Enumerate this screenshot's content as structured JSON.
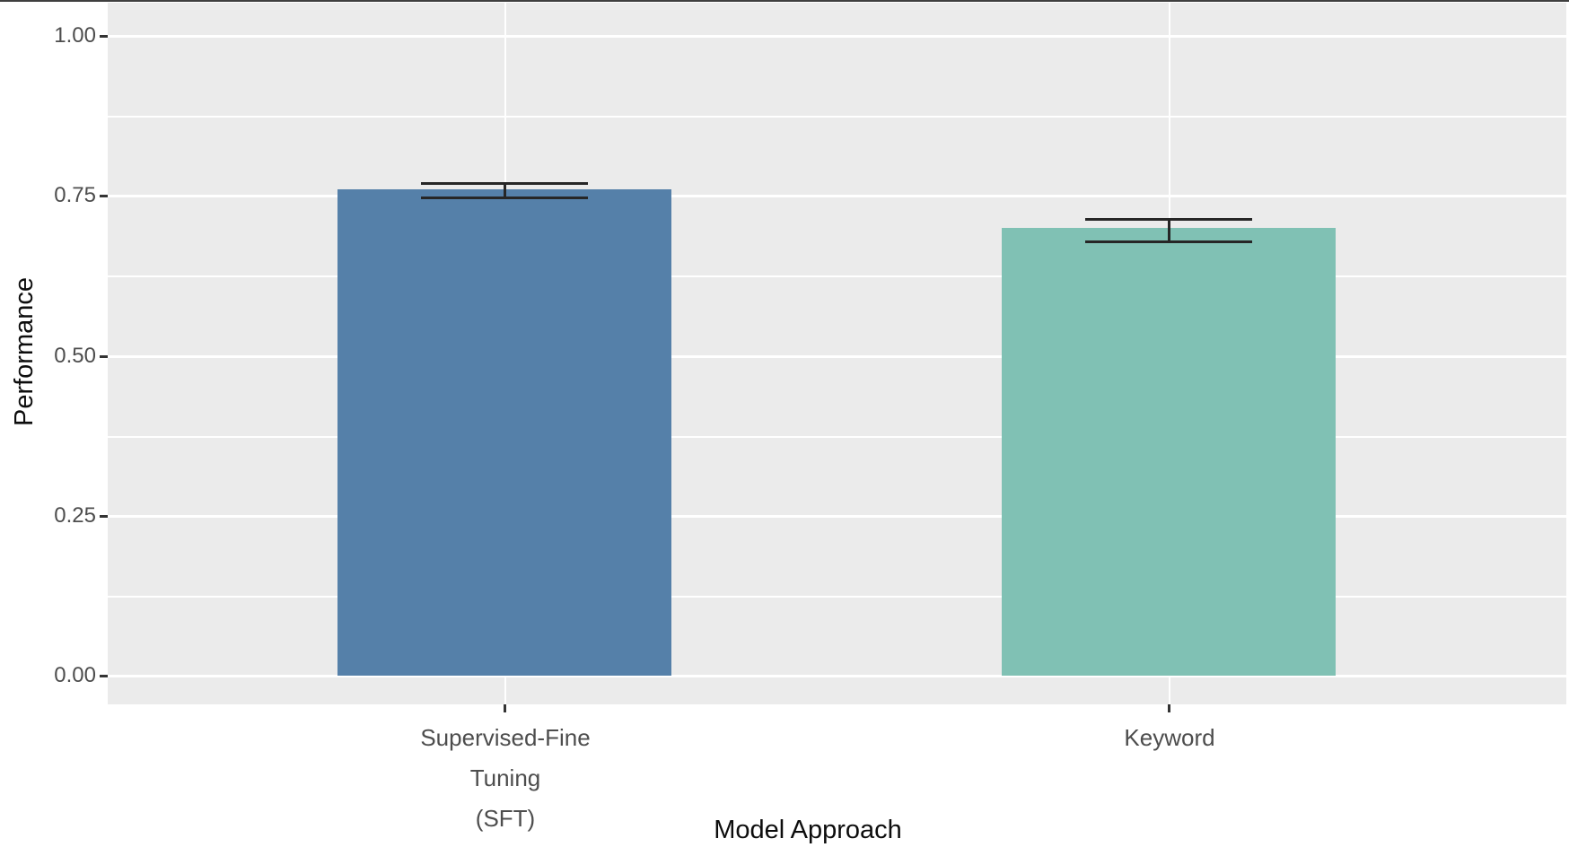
{
  "chart_data": {
    "type": "bar",
    "title": "",
    "xlabel": "Model Approach",
    "ylabel": "Performance",
    "categories": [
      "Supervised-Fine Tuning (SFT)",
      "Keyword"
    ],
    "values": [
      0.76,
      0.7
    ],
    "error_bars": [
      {
        "low": 0.749,
        "high": 0.772
      },
      {
        "low": 0.68,
        "high": 0.715
      }
    ],
    "bar_colors": [
      "#5580a9",
      "#80c1b4"
    ],
    "ylim": [
      0,
      1.05
    ],
    "yticks": [
      "1.00",
      "0.75",
      "0.50",
      "0.25",
      "0.00"
    ],
    "ytick_values": [
      1.0,
      0.75,
      0.5,
      0.25,
      0.0
    ],
    "x_tick_lines": {
      "sft": [
        "Supervised-Fine",
        "Tuning",
        "(SFT)"
      ],
      "keyword": "Keyword"
    },
    "grid": "white horizontal major+minor, white vertical major at category centers",
    "legend_position": "none",
    "panel_background": "#ebebeb",
    "errorbar_color": "#262626",
    "axis_text_color": "#4d4d4d",
    "axis_title_color": "#0d0d0d"
  }
}
